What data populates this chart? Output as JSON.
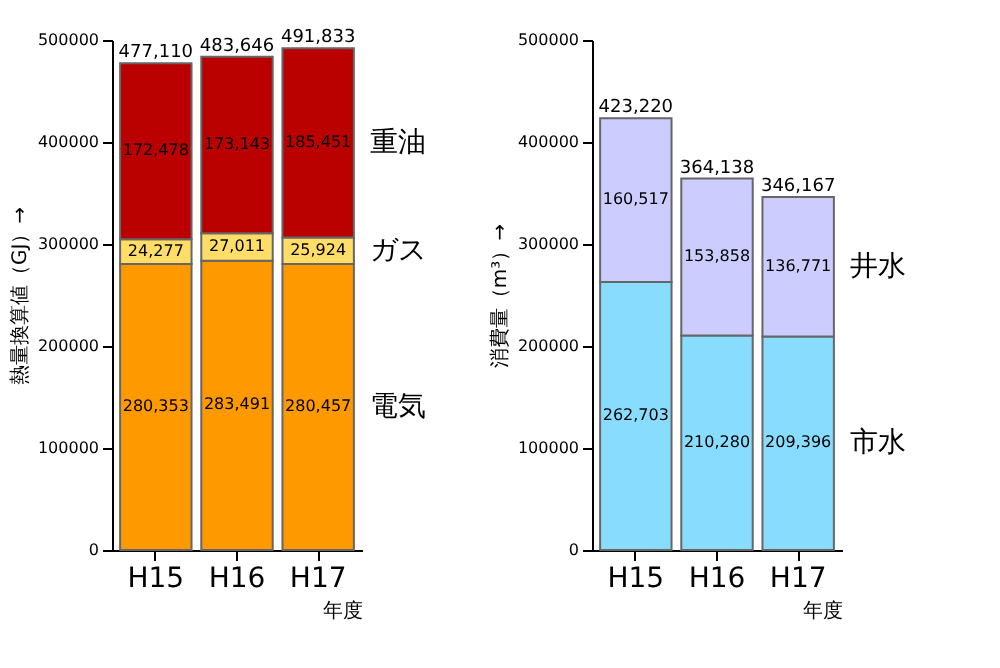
{
  "chart_data": [
    {
      "type": "bar",
      "stacked": true,
      "categories": [
        "H15",
        "H16",
        "H17"
      ],
      "xlabel": "年度",
      "ylabel": "熱量換算値（GJ）→",
      "ylim": [
        0,
        500000
      ],
      "yticks": [
        0,
        100000,
        200000,
        300000,
        400000,
        500000
      ],
      "grid": false,
      "series": [
        {
          "name": "電気",
          "color": "#ff9900",
          "values": [
            280353,
            283491,
            280457
          ],
          "value_labels": [
            "280,353",
            "283,491",
            "280,457"
          ]
        },
        {
          "name": "ガス",
          "color": "#ffdd66",
          "values": [
            24277,
            27011,
            25924
          ],
          "value_labels": [
            "24,277",
            "27,011",
            "25,924"
          ]
        },
        {
          "name": "重油",
          "color": "#bb0000",
          "values": [
            172478,
            173143,
            185451
          ],
          "value_labels": [
            "172,478",
            "173,143",
            "185,451"
          ]
        }
      ],
      "totals": [
        "477,110",
        "483,646",
        "491,833"
      ]
    },
    {
      "type": "bar",
      "stacked": true,
      "categories": [
        "H15",
        "H16",
        "H17"
      ],
      "xlabel": "年度",
      "ylabel": "消費量（m³）→",
      "ylim": [
        0,
        500000
      ],
      "yticks": [
        0,
        100000,
        200000,
        300000,
        400000,
        500000
      ],
      "grid": false,
      "series": [
        {
          "name": "市水",
          "color": "#88ddff",
          "values": [
            262703,
            210280,
            209396
          ],
          "value_labels": [
            "262,703",
            "210,280",
            "209,396"
          ]
        },
        {
          "name": "井水",
          "color": "#ccccff",
          "values": [
            160517,
            153858,
            136771
          ],
          "value_labels": [
            "160,517",
            "153,858",
            "136,771"
          ]
        }
      ],
      "totals": [
        "423,220",
        "364,138",
        "346,167"
      ]
    }
  ]
}
